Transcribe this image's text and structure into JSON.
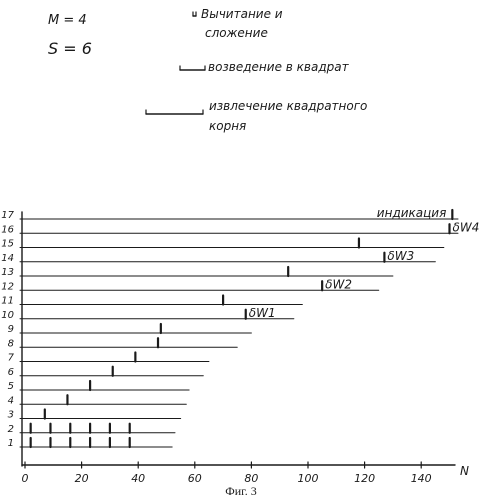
{
  "params": {
    "m": "M = 4",
    "s": "S = 6"
  },
  "legend": {
    "items": [
      {
        "label_line1": "Вычитание и",
        "label_line2": "сложение",
        "span": 1
      },
      {
        "label_line1": "возведение в квадрат",
        "label_line2": "",
        "span": 4
      },
      {
        "label_line1": "извлечение квадратного",
        "label_line2": "корня",
        "span": 12
      }
    ]
  },
  "chart_data": {
    "type": "timeline",
    "x_axis": {
      "label": "N",
      "ticks": [
        0,
        20,
        40,
        60,
        80,
        100,
        120,
        140
      ],
      "range": [
        0,
        155
      ]
    },
    "rows": [
      {
        "label": "1",
        "end": 52,
        "marks": [
          2,
          9,
          16,
          23,
          30,
          37
        ]
      },
      {
        "label": "2",
        "end": 53,
        "marks": [
          2,
          9,
          16,
          23,
          30,
          37
        ]
      },
      {
        "label": "3",
        "end": 55,
        "marks": [
          7
        ]
      },
      {
        "label": "4",
        "end": 57,
        "marks": [
          15
        ]
      },
      {
        "label": "5",
        "end": 58,
        "marks": [
          23
        ]
      },
      {
        "label": "6",
        "end": 63,
        "marks": [
          31
        ]
      },
      {
        "label": "7",
        "end": 65,
        "marks": [
          39
        ]
      },
      {
        "label": "8",
        "end": 75,
        "marks": [
          47
        ]
      },
      {
        "label": "9",
        "end": 80,
        "marks": [
          48
        ]
      },
      {
        "label": "10",
        "end": 95,
        "marks": [
          78
        ]
      },
      {
        "label": "11",
        "end": 98,
        "marks": [
          70
        ]
      },
      {
        "label": "12",
        "end": 125,
        "marks": [
          105
        ]
      },
      {
        "label": "13",
        "end": 130,
        "marks": [
          93
        ]
      },
      {
        "label": "14",
        "end": 145,
        "marks": [
          127
        ]
      },
      {
        "label": "15",
        "end": 148,
        "marks": [
          118
        ]
      },
      {
        "label": "16",
        "end": 153,
        "marks": [
          150
        ]
      },
      {
        "label": "17",
        "end": 153,
        "marks": [
          151
        ]
      }
    ],
    "annotations": [
      {
        "row": "17",
        "text": "индикация"
      },
      {
        "row": "16",
        "text": "δW4"
      },
      {
        "row": "14",
        "text": "δW3"
      },
      {
        "row": "12",
        "text": "δW2"
      },
      {
        "row": "10",
        "text": "δW1"
      }
    ]
  },
  "caption": "Фиг. 3"
}
